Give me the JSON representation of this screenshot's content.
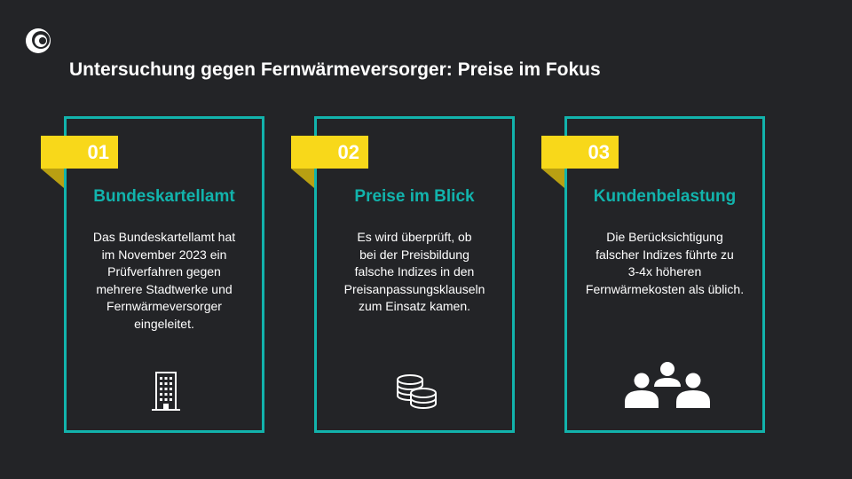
{
  "slide": {
    "title": "Untersuchung gegen Fernwärmeversorger: Preise im Fokus",
    "logo_icon": "crescent-swirl-logo-icon",
    "accent_color": "#12b3ac",
    "badge_color": "#f8d81a",
    "background_color": "#232427"
  },
  "cards": [
    {
      "number": "01",
      "title": "Bundeskartellamt",
      "lines": [
        "Das Bundeskartellamt hat",
        "im November 2023 ein",
        "Prüfverfahren gegen",
        "mehrere Stadtwerke und",
        "Fernwärmeversorger",
        "eingeleitet."
      ],
      "icon": "office-building-icon"
    },
    {
      "number": "02",
      "title": "Preise im Blick",
      "lines": [
        "Es wird überprüft, ob",
        "bei der Preisbildung",
        "falsche Indizes in den",
        "Preisanpassungsklauseln",
        "zum Einsatz kamen."
      ],
      "icon": "coin-stack-icon"
    },
    {
      "number": "03",
      "title": "Kundenbelastung",
      "lines": [
        "Die Berücksichtigung",
        "falscher Indizes führte zu",
        "3-4x höheren",
        "Fernwärmekosten als üblich."
      ],
      "icon": "people-group-icon"
    }
  ]
}
